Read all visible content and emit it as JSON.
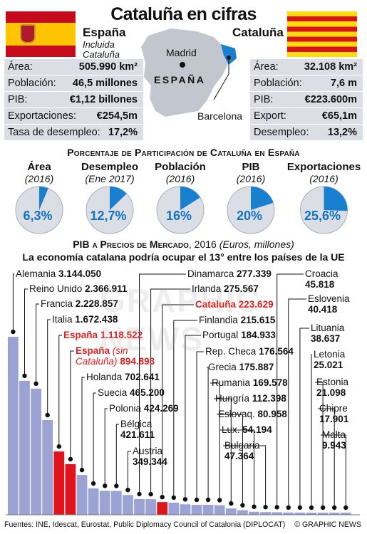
{
  "title": "Cataluña en cifras",
  "spain": {
    "name": "España",
    "subtitle1": "Incluida",
    "subtitle2": "Cataluña",
    "stats": [
      {
        "label": "Área:",
        "value": "505.990 km²"
      },
      {
        "label": "Población:",
        "value": "46,5 millones"
      },
      {
        "label": "PIB:",
        "value": "€1,12 billones"
      },
      {
        "label": "Exportaciones:",
        "value": "€254,5m"
      },
      {
        "label": "Tasa de desempleo:",
        "value": "17,2%"
      }
    ]
  },
  "catalonia": {
    "name": "Cataluña",
    "stats": [
      {
        "label": "Área:",
        "value": "32.108 km²"
      },
      {
        "label": "Población:",
        "value": "7,6 m"
      },
      {
        "label": "PIB:",
        "value": "€223.600m"
      },
      {
        "label": "Export:",
        "value": "€65,1m"
      },
      {
        "label": "Desempleo:",
        "value": "13,2%"
      }
    ]
  },
  "map": {
    "madrid": "Madrid",
    "espana": "ESPAÑA",
    "barcelona": "Barcelona"
  },
  "share_title": "Porcentaje de Participación de Cataluña en España",
  "share": [
    {
      "title": "Área",
      "year": "(2016)",
      "value": 6.3,
      "label": "6,3%"
    },
    {
      "title": "Desempleo",
      "year": "(Ene 2017)",
      "value": 12.7,
      "label": "12,7%"
    },
    {
      "title": "Población",
      "year": "(2016)",
      "value": 16,
      "label": "16%"
    },
    {
      "title": "PIB",
      "year": "(2016)",
      "value": 20,
      "label": "20%"
    },
    {
      "title": "Exportaciones",
      "year": "(2016)",
      "value": 25.6,
      "label": "25,6%"
    }
  ],
  "gdp_title_bold": "PIB a Precios de Mercado",
  "gdp_title_rest": ", 2016",
  "gdp_title_italic": " (Euros, millones)",
  "gdp_subtitle": "La economía catalana podría ocupar el 13° entre los países de la UE",
  "chart_data": {
    "type": "bar",
    "title": "PIB a Precios de Mercado, 2016 (Euros, millones)",
    "subtitle": "La economía catalana podría ocupar el 13° entre los países de la UE",
    "categories": [
      "Alemania",
      "Reino Unido",
      "Francia",
      "Italia",
      "España",
      "España (sin Cataluña)",
      "Holanda",
      "Suecia",
      "Polonia",
      "Bélgica",
      "Austria",
      "Dinamarca",
      "Irlanda",
      "Cataluña",
      "Finlandia",
      "Portugal",
      "Rep. Checa",
      "Grecia",
      "Rumania",
      "Hungría",
      "Eslovaq.",
      "Lux.",
      "Bulgaria",
      "Croacia",
      "Eslovenia",
      "Lituania",
      "Letonia",
      "Estonia",
      "Chipre",
      "Malta"
    ],
    "values": [
      3144050,
      2366911,
      2228857,
      1672438,
      1118522,
      894893,
      702641,
      465200,
      424269,
      421611,
      349344,
      277339,
      275567,
      223629,
      215615,
      184933,
      176564,
      175887,
      169578,
      112398,
      80958,
      54194,
      47364,
      45818,
      40418,
      38637,
      25021,
      21098,
      17901,
      9943
    ],
    "value_labels": [
      "3.144.050",
      "2.366.911",
      "2.228.857",
      "1.672.438",
      "1.118.522",
      "894.893",
      "702.641",
      "465.200",
      "424.269",
      "421.611",
      "349.344",
      "277.339",
      "275.567",
      "223.629",
      "215.615",
      "184.933",
      "176.564",
      "175.887",
      "169.578",
      "112.398",
      "80.958",
      "54.194",
      "47.364",
      "45.818",
      "40.418",
      "38.637",
      "25.021",
      "21.098",
      "17.901",
      "9.943"
    ],
    "highlight": [
      "España",
      "España (sin Cataluña)",
      "Cataluña"
    ],
    "colors": {
      "bar": "#9aa3d4",
      "highlight": "#e0141c",
      "pie_fill": "#1880cf",
      "pie_base": "#dcdee5"
    }
  },
  "footer": "Fuentes: INE, Idescat, Eurostat, Public Diplomacy Council of Catalonia (DIPLOCAT)",
  "credit": "© GRAPHIC NEWS",
  "watermark": "GRAPHIC NEWS"
}
